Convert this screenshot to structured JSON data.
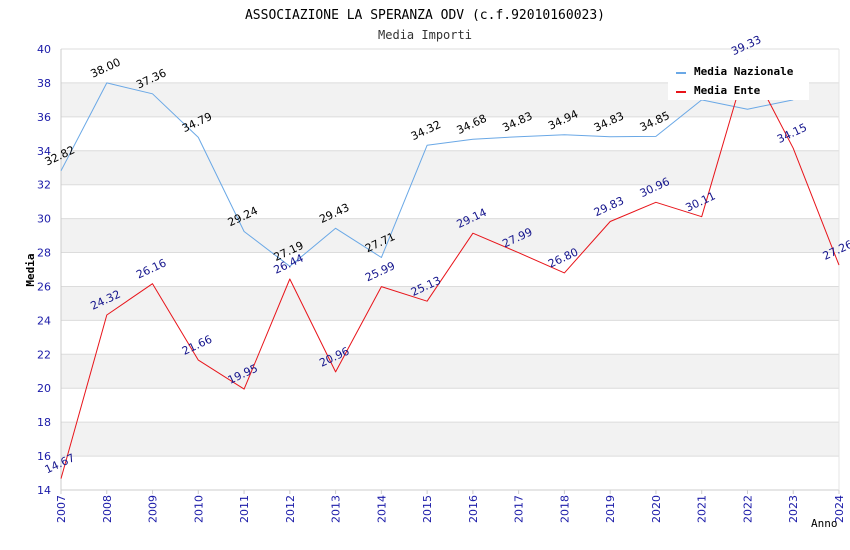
{
  "chart_data": {
    "type": "line",
    "title": "ASSOCIAZIONE LA SPERANZA ODV (c.f.92010160023)",
    "subtitle": "Media Importi",
    "xlabel": "Anno",
    "ylabel": "Media",
    "ylim": [
      14,
      40
    ],
    "yticks": [
      14,
      16,
      18,
      20,
      22,
      24,
      26,
      28,
      30,
      32,
      34,
      36,
      38,
      40
    ],
    "grid": "horizontal bands",
    "legend_position": "top-right",
    "x": [
      2007,
      2008,
      2009,
      2010,
      2011,
      2012,
      2013,
      2014,
      2015,
      2016,
      2017,
      2018,
      2019,
      2020,
      2021,
      2022,
      2023,
      2024
    ],
    "series": [
      {
        "name": "Media Nazionale",
        "color": "#6aa8e6",
        "label_color": "#000000",
        "values": [
          32.82,
          38.0,
          37.36,
          34.79,
          29.24,
          27.19,
          29.43,
          27.71,
          34.32,
          34.68,
          34.83,
          34.94,
          34.83,
          34.85,
          37.0,
          36.45,
          37.0,
          null
        ],
        "labels": [
          "32.82",
          "38.00",
          "37.36",
          "34.79",
          "29.24",
          "27.19",
          "29.43",
          "27.71",
          "34.32",
          "34.68",
          "34.83",
          "34.94",
          "34.83",
          "34.85",
          "",
          "",
          "",
          ""
        ]
      },
      {
        "name": "Media Ente",
        "color": "#e8141a",
        "label_color": "#14148c",
        "values": [
          14.67,
          24.32,
          26.16,
          21.66,
          19.95,
          26.44,
          20.96,
          25.99,
          25.13,
          29.14,
          27.99,
          26.8,
          29.83,
          30.96,
          30.11,
          39.33,
          34.15,
          27.26
        ],
        "labels": [
          "14.67",
          "24.32",
          "26.16",
          "21.66",
          "19.95",
          "26.44",
          "20.96",
          "25.99",
          "25.13",
          "29.14",
          "27.99",
          "26.80",
          "29.83",
          "30.96",
          "30.11",
          "39.33",
          "34.15",
          "27.26"
        ]
      }
    ]
  }
}
